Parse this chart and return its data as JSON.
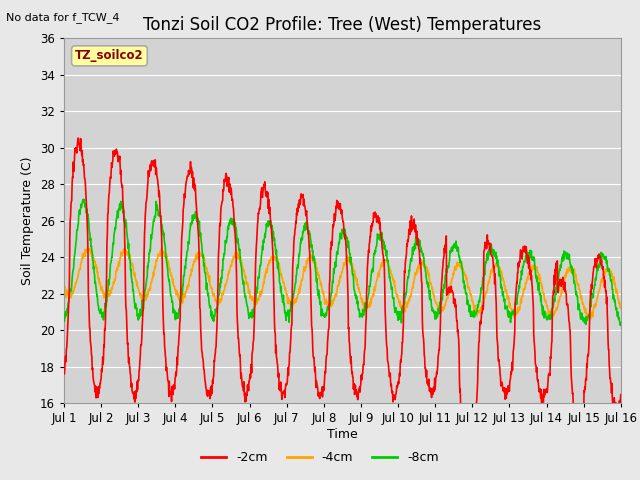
{
  "title": "Tonzi Soil CO2 Profile: Tree (West) Temperatures",
  "no_data_text": "No data for f_TCW_4",
  "ylabel": "Soil Temperature (C)",
  "xlabel": "Time",
  "ylim": [
    16,
    36
  ],
  "xlim": [
    0,
    15
  ],
  "xtick_labels": [
    "Jul 1",
    "Jul 2",
    "Jul 3",
    "Jul 4",
    "Jul 5",
    "Jul 6",
    "Jul 7",
    "Jul 8",
    "Jul 9",
    "Jul 10",
    "Jul 11",
    "Jul 12",
    "Jul 13",
    "Jul 14",
    "Jul 15",
    "Jul 16"
  ],
  "legend_box_label": "TZ_soilco2",
  "line_colors": {
    "m2cm": "#FF0000",
    "m4cm": "#FFA500",
    "m8cm": "#00CC00"
  },
  "legend_labels": [
    "-2cm",
    "-4cm",
    "-8cm"
  ],
  "bg_color": "#E8E8E8",
  "plot_bg_color": "#D3D3D3",
  "title_fontsize": 12,
  "axis_fontsize": 9,
  "tick_fontsize": 8.5
}
